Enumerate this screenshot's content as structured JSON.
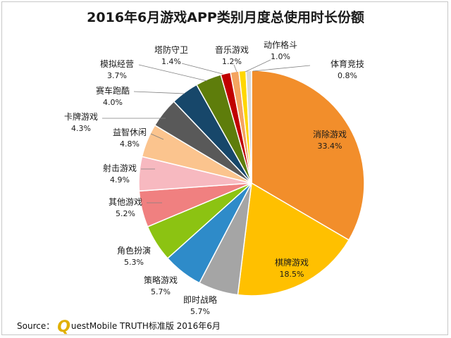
{
  "chart_data": {
    "type": "pie",
    "title": "2016年6月游戏APP类别月度总使用时长份额",
    "slices": [
      {
        "label": "消除游戏",
        "value": 33.4,
        "display": "33.4%",
        "color": "#f28e2b"
      },
      {
        "label": "棋牌游戏",
        "value": 18.5,
        "display": "18.5%",
        "color": "#ffc000"
      },
      {
        "label": "即时战略",
        "value": 5.7,
        "display": "5.7%",
        "color": "#a5a5a5"
      },
      {
        "label": "策略游戏",
        "value": 5.7,
        "display": "5.7%",
        "color": "#2e8bc9"
      },
      {
        "label": "角色扮演",
        "value": 5.3,
        "display": "5.3%",
        "color": "#8cc312"
      },
      {
        "label": "其他游戏",
        "value": 5.2,
        "display": "5.2%",
        "color": "#f08080"
      },
      {
        "label": "射击游戏",
        "value": 4.9,
        "display": "4.9%",
        "color": "#f7b9c0"
      },
      {
        "label": "益智休闲",
        "value": 4.8,
        "display": "4.8%",
        "color": "#fbc48e"
      },
      {
        "label": "卡牌游戏",
        "value": 4.3,
        "display": "4.3%",
        "color": "#595959"
      },
      {
        "label": "赛车跑酷",
        "value": 4.0,
        "display": "4.0%",
        "color": "#17476a"
      },
      {
        "label": "模拟经营",
        "value": 3.7,
        "display": "3.7%",
        "color": "#5e7d0b"
      },
      {
        "label": "塔防守卫",
        "value": 1.4,
        "display": "1.4%",
        "color": "#c00000"
      },
      {
        "label": "音乐游戏",
        "value": 1.2,
        "display": "1.2%",
        "color": "#f4a460"
      },
      {
        "label": "动作格斗",
        "value": 1.0,
        "display": "1.0%",
        "color": "#ffd700"
      },
      {
        "label": "体育竞技",
        "value": 0.8,
        "display": "0.8%",
        "color": "#d9d9d9"
      }
    ]
  },
  "footer": {
    "source_label": "Source：",
    "brand_initial": "Q",
    "source_text": "uestMobile TRUTH标准版 2016年6月"
  }
}
